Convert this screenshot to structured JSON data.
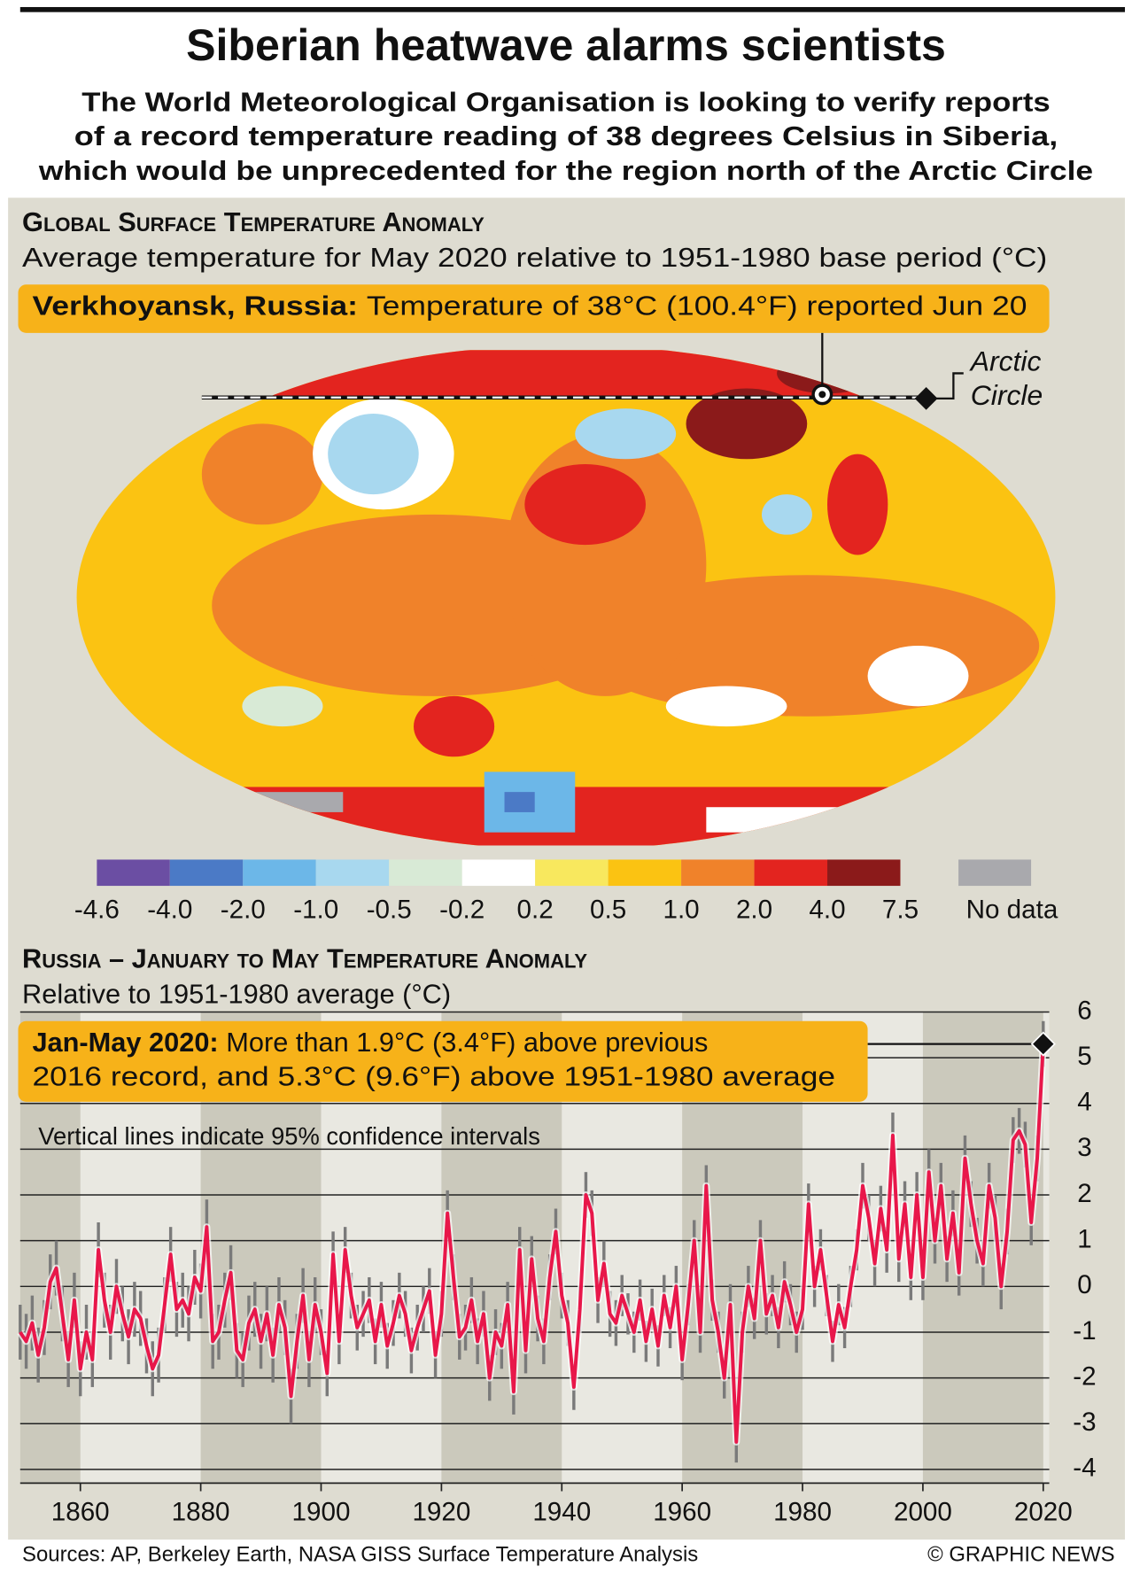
{
  "header": {
    "title": "Siberian heatwave alarms scientists",
    "subtitle": [
      "The World Meteorological Organisation is looking to verify reports",
      "of a record temperature reading of 38 degrees Celsius in Siberia,",
      "which would be unprecedented for the region north of the Arctic Circle"
    ]
  },
  "map": {
    "heading": "Global Surface Temperature Anomaly",
    "subheading": "Average temperature for May 2020 relative to 1951-1980 base period (°C)",
    "callout": {
      "bold": "Verkhoyansk, Russia:",
      "text": "Temperature of 38°C (100.4°F) reported Jun 20"
    },
    "annotation": [
      "Arctic",
      "Circle"
    ],
    "legend": {
      "colors": [
        "#6b4ea3",
        "#4b7ac6",
        "#6cb7e8",
        "#a8d8ef",
        "#d8ead6",
        "#ffffff",
        "#f8e85e",
        "#fbc312",
        "#f0822a",
        "#e3241f",
        "#8b1a1a"
      ],
      "bounds": [
        -4.6,
        {
          "value": -4,
          "label": "-4.0"
        },
        {
          "value": -2,
          "label": "-2.0"
        },
        {
          "value": -1,
          "label": "-1.0"
        },
        -0.5,
        -0.2,
        0.2,
        0.5,
        {
          "value": 1,
          "label": "1.0"
        },
        {
          "value": 2,
          "label": "2.0"
        },
        {
          "value": 4,
          "label": "4.0"
        },
        7.5
      ],
      "no_data": {
        "label": "No data",
        "color": "#a9a9ad"
      }
    }
  },
  "chart_data": {
    "type": "line",
    "title": "Russia – January to May Temperature Anomaly",
    "subtitle": "Relative to 1951-1980 average (°C)",
    "callout": {
      "bold": "Jan-May 2020:",
      "lines": [
        "More than 1.9°C (3.4°F) above previous",
        "2016 record, and 5.3°C (9.6°F) above 1951-1980 average"
      ]
    },
    "note": "Vertical lines indicate 95% confidence intervals",
    "color": "#e8174a",
    "error_color": "#7a7a7a",
    "x": [
      1850,
      1851,
      1852,
      1853,
      1854,
      1855,
      1856,
      1857,
      1858,
      1859,
      1860,
      1861,
      1862,
      1863,
      1864,
      1865,
      1866,
      1867,
      1868,
      1869,
      1870,
      1871,
      1872,
      1873,
      1874,
      1875,
      1876,
      1877,
      1878,
      1879,
      1880,
      1881,
      1882,
      1883,
      1884,
      1885,
      1886,
      1887,
      1888,
      1889,
      1890,
      1891,
      1892,
      1893,
      1894,
      1895,
      1896,
      1897,
      1898,
      1899,
      1900,
      1901,
      1902,
      1903,
      1904,
      1905,
      1906,
      1907,
      1908,
      1909,
      1910,
      1911,
      1912,
      1913,
      1914,
      1915,
      1916,
      1917,
      1918,
      1919,
      1920,
      1921,
      1922,
      1923,
      1924,
      1925,
      1926,
      1927,
      1928,
      1929,
      1930,
      1931,
      1932,
      1933,
      1934,
      1935,
      1936,
      1937,
      1938,
      1939,
      1940,
      1941,
      1942,
      1943,
      1944,
      1945,
      1946,
      1947,
      1948,
      1949,
      1950,
      1951,
      1952,
      1953,
      1954,
      1955,
      1956,
      1957,
      1958,
      1959,
      1960,
      1961,
      1962,
      1963,
      1964,
      1965,
      1966,
      1967,
      1968,
      1969,
      1970,
      1971,
      1972,
      1973,
      1974,
      1975,
      1976,
      1977,
      1978,
      1979,
      1980,
      1981,
      1982,
      1983,
      1984,
      1985,
      1986,
      1987,
      1988,
      1989,
      1990,
      1991,
      1992,
      1993,
      1994,
      1995,
      1996,
      1997,
      1998,
      1999,
      2000,
      2001,
      2002,
      2003,
      2004,
      2005,
      2006,
      2007,
      2008,
      2009,
      2010,
      2011,
      2012,
      2013,
      2014,
      2015,
      2016,
      2017,
      2018,
      2019,
      2020
    ],
    "values": [
      -1.0,
      -1.2,
      -0.8,
      -1.5,
      -0.9,
      0.1,
      0.4,
      -0.6,
      -1.6,
      -0.3,
      -1.8,
      -1.0,
      -1.6,
      0.8,
      -0.3,
      -1.0,
      0.0,
      -0.6,
      -1.1,
      -0.5,
      -0.7,
      -1.3,
      -1.8,
      -1.5,
      -0.4,
      0.7,
      -0.5,
      -0.3,
      -0.6,
      0.2,
      -0.1,
      1.3,
      -1.2,
      -1.0,
      -0.3,
      0.3,
      -1.4,
      -1.6,
      -0.8,
      -0.5,
      -1.2,
      -0.6,
      -1.5,
      -0.4,
      -0.9,
      -2.4,
      -1.2,
      -0.2,
      -1.6,
      -0.4,
      -1.0,
      -1.9,
      0.7,
      -1.2,
      0.8,
      -0.2,
      -0.9,
      -0.6,
      -0.3,
      -1.2,
      -0.4,
      -1.3,
      -0.8,
      -0.2,
      -0.6,
      -1.4,
      -0.9,
      -0.5,
      -0.1,
      -1.5,
      -0.6,
      1.6,
      0.2,
      -1.1,
      -0.9,
      -0.3,
      -1.2,
      -0.6,
      -2.0,
      -1.0,
      -1.3,
      -0.4,
      -2.3,
      0.8,
      -1.4,
      0.6,
      -0.7,
      -1.2,
      0.2,
      1.2,
      -0.2,
      -0.8,
      -2.2,
      -0.5,
      2.0,
      1.6,
      -0.3,
      0.5,
      -0.6,
      -0.8,
      -0.2,
      -0.6,
      -1.0,
      -0.3,
      -1.2,
      -0.5,
      -1.3,
      -0.2,
      -0.9,
      0.0,
      -1.6,
      -0.4,
      1.0,
      -1.0,
      2.2,
      -0.3,
      -1.0,
      -2.0,
      -0.4,
      -3.4,
      -1.0,
      0.0,
      -0.7,
      1.0,
      -0.6,
      -0.2,
      -0.9,
      0.1,
      -0.4,
      -1.0,
      -0.5,
      1.8,
      0.0,
      0.8,
      -0.2,
      -1.2,
      -0.4,
      -0.9,
      0.0,
      0.8,
      2.2,
      1.5,
      0.5,
      1.7,
      0.8,
      3.3,
      0.6,
      1.8,
      0.2,
      2.0,
      0.2,
      2.5,
      1.0,
      2.2,
      0.6,
      1.6,
      0.3,
      2.8,
      1.8,
      1.0,
      0.5,
      2.2,
      1.5,
      0.0,
      1.2,
      3.2,
      3.4,
      3.1,
      1.4,
      2.8,
      5.3
    ],
    "errors": [
      0.6,
      0.6,
      0.6,
      0.6,
      0.6,
      0.6,
      0.6,
      0.6,
      0.6,
      0.6,
      0.6,
      0.6,
      0.6,
      0.6,
      0.6,
      0.6,
      0.6,
      0.6,
      0.6,
      0.6,
      0.6,
      0.6,
      0.6,
      0.6,
      0.6,
      0.6,
      0.6,
      0.6,
      0.6,
      0.6,
      0.6,
      0.6,
      0.6,
      0.6,
      0.6,
      0.6,
      0.6,
      0.6,
      0.6,
      0.6,
      0.6,
      0.6,
      0.6,
      0.6,
      0.6,
      0.6,
      0.6,
      0.6,
      0.6,
      0.6,
      0.5,
      0.5,
      0.5,
      0.5,
      0.5,
      0.5,
      0.5,
      0.5,
      0.5,
      0.5,
      0.5,
      0.5,
      0.5,
      0.5,
      0.5,
      0.5,
      0.5,
      0.5,
      0.5,
      0.5,
      0.5,
      0.5,
      0.5,
      0.5,
      0.5,
      0.5,
      0.5,
      0.5,
      0.5,
      0.5,
      0.5,
      0.5,
      0.5,
      0.5,
      0.5,
      0.5,
      0.5,
      0.5,
      0.5,
      0.5,
      0.5,
      0.5,
      0.5,
      0.5,
      0.5,
      0.5,
      0.5,
      0.5,
      0.5,
      0.5,
      0.45,
      0.45,
      0.45,
      0.45,
      0.45,
      0.45,
      0.45,
      0.45,
      0.45,
      0.45,
      0.45,
      0.45,
      0.45,
      0.45,
      0.45,
      0.45,
      0.45,
      0.45,
      0.45,
      0.45,
      0.45,
      0.45,
      0.45,
      0.45,
      0.45,
      0.45,
      0.45,
      0.45,
      0.45,
      0.45,
      0.45,
      0.45,
      0.45,
      0.45,
      0.45,
      0.45,
      0.45,
      0.45,
      0.45,
      0.45,
      0.5,
      0.5,
      0.5,
      0.5,
      0.5,
      0.5,
      0.5,
      0.5,
      0.5,
      0.5,
      0.5,
      0.5,
      0.5,
      0.5,
      0.5,
      0.5,
      0.5,
      0.5,
      0.5,
      0.5,
      0.5,
      0.5,
      0.5,
      0.5,
      0.5,
      0.5,
      0.5,
      0.5,
      0.5,
      0.5,
      0.5
    ],
    "xlim": [
      1850,
      2021
    ],
    "ylim": [
      -4.3,
      6
    ],
    "xticks": [
      1860,
      1880,
      1900,
      1920,
      1940,
      1960,
      1980,
      2000,
      2020
    ],
    "yticks": [
      -4,
      -3,
      -2,
      -1,
      0,
      1,
      2,
      3,
      4,
      5,
      6
    ],
    "grid": true,
    "y_axis_side": "right"
  },
  "footer": {
    "source": "Sources: AP, Berkeley Earth, NASA GISS Surface Temperature Analysis",
    "credit": "© GRAPHIC NEWS"
  }
}
